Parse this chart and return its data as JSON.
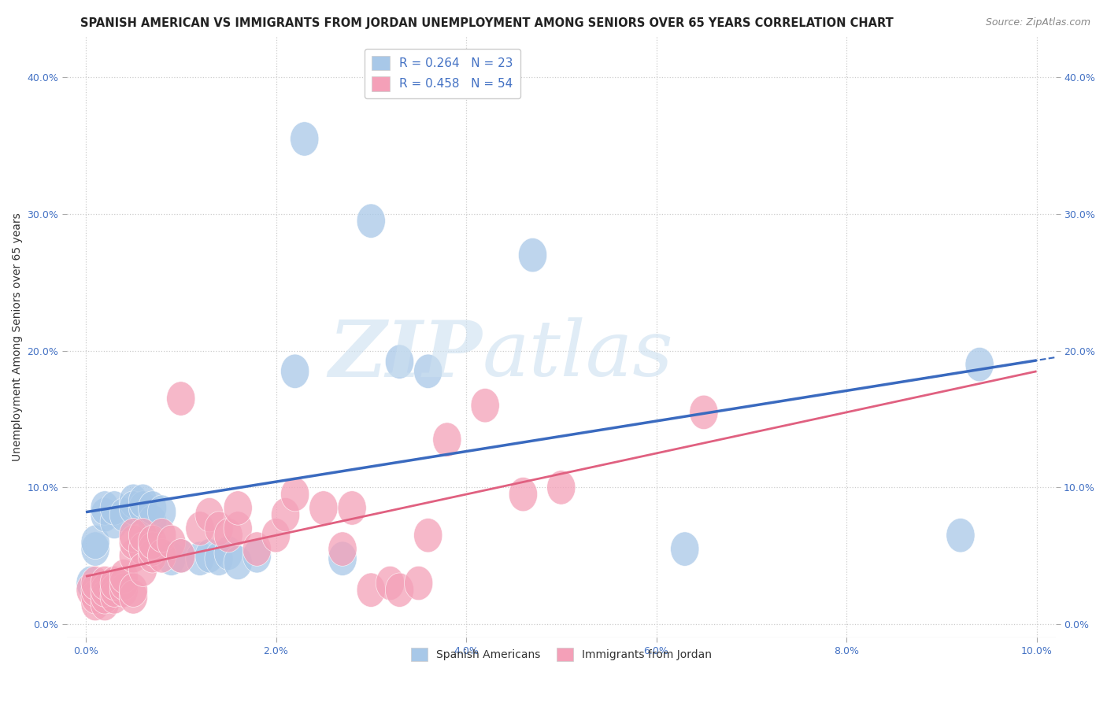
{
  "title": "SPANISH AMERICAN VS IMMIGRANTS FROM JORDAN UNEMPLOYMENT AMONG SENIORS OVER 65 YEARS CORRELATION CHART",
  "source": "Source: ZipAtlas.com",
  "ylabel": "Unemployment Among Seniors over 65 years",
  "x_tick_labels": [
    "0.0%",
    "2.0%",
    "4.0%",
    "6.0%",
    "8.0%",
    "10.0%"
  ],
  "x_tick_values": [
    0.0,
    0.02,
    0.04,
    0.06,
    0.08,
    0.1
  ],
  "y_tick_labels": [
    "0.0%",
    "10.0%",
    "20.0%",
    "30.0%",
    "40.0%"
  ],
  "y_tick_values": [
    0.0,
    0.1,
    0.2,
    0.3,
    0.4
  ],
  "xlim": [
    -0.002,
    0.102
  ],
  "ylim": [
    -0.01,
    0.43
  ],
  "dot_blue": "#a8c8e8",
  "dot_pink": "#f4a0b8",
  "line_blue": "#3a6abf",
  "line_pink": "#e06080",
  "bg_color": "#ffffff",
  "grid_color": "#cccccc",
  "tick_color": "#4472c4",
  "title_fontsize": 10.5,
  "source_fontsize": 9,
  "axis_label_fontsize": 10,
  "tick_fontsize": 9,
  "blue_line_x0": 0.0,
  "blue_line_x1": 0.1,
  "blue_line_y0": 0.082,
  "blue_line_y1": 0.193,
  "pink_line_x0": 0.0,
  "pink_line_x1": 0.1,
  "pink_line_y0": 0.035,
  "pink_line_y1": 0.185,
  "blue_scatter_x": [
    0.0005,
    0.001,
    0.001,
    0.002,
    0.002,
    0.003,
    0.003,
    0.004,
    0.005,
    0.005,
    0.006,
    0.006,
    0.007,
    0.007,
    0.008,
    0.009,
    0.01,
    0.012,
    0.013,
    0.014,
    0.015,
    0.016,
    0.018,
    0.022,
    0.023,
    0.027,
    0.03,
    0.033,
    0.036,
    0.047,
    0.063,
    0.092,
    0.094
  ],
  "blue_scatter_y": [
    0.03,
    0.055,
    0.06,
    0.08,
    0.085,
    0.075,
    0.085,
    0.08,
    0.09,
    0.085,
    0.085,
    0.09,
    0.075,
    0.085,
    0.082,
    0.048,
    0.05,
    0.048,
    0.05,
    0.048,
    0.052,
    0.045,
    0.05,
    0.185,
    0.355,
    0.048,
    0.295,
    0.192,
    0.185,
    0.27,
    0.055,
    0.065,
    0.19
  ],
  "pink_scatter_x": [
    0.0005,
    0.001,
    0.001,
    0.001,
    0.001,
    0.002,
    0.002,
    0.002,
    0.002,
    0.003,
    0.003,
    0.003,
    0.004,
    0.004,
    0.004,
    0.005,
    0.005,
    0.005,
    0.005,
    0.005,
    0.006,
    0.006,
    0.006,
    0.007,
    0.007,
    0.007,
    0.008,
    0.008,
    0.009,
    0.01,
    0.01,
    0.012,
    0.013,
    0.014,
    0.015,
    0.016,
    0.016,
    0.018,
    0.02,
    0.021,
    0.022,
    0.025,
    0.027,
    0.028,
    0.03,
    0.032,
    0.033,
    0.035,
    0.036,
    0.038,
    0.042,
    0.046,
    0.05,
    0.065
  ],
  "pink_scatter_y": [
    0.025,
    0.015,
    0.02,
    0.025,
    0.03,
    0.015,
    0.02,
    0.025,
    0.03,
    0.02,
    0.025,
    0.03,
    0.025,
    0.03,
    0.035,
    0.02,
    0.025,
    0.05,
    0.06,
    0.065,
    0.055,
    0.065,
    0.04,
    0.05,
    0.055,
    0.06,
    0.05,
    0.065,
    0.06,
    0.05,
    0.165,
    0.07,
    0.08,
    0.07,
    0.065,
    0.07,
    0.085,
    0.055,
    0.065,
    0.08,
    0.095,
    0.085,
    0.055,
    0.085,
    0.025,
    0.03,
    0.025,
    0.03,
    0.065,
    0.135,
    0.16,
    0.095,
    0.1,
    0.155
  ]
}
